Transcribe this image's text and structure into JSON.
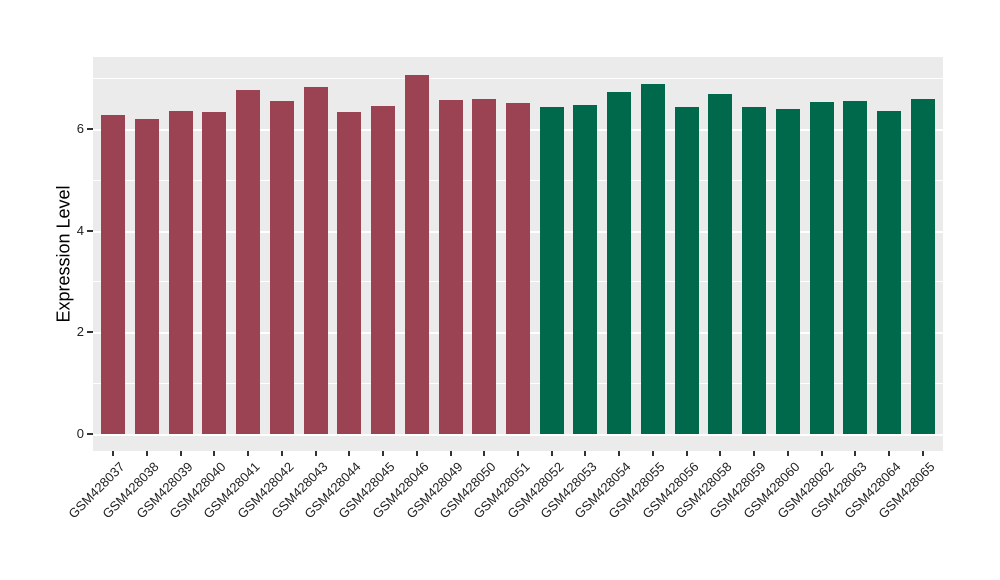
{
  "figure": {
    "background": "#FFFFFF",
    "panel_background": "#EBEBEB",
    "grid_color": "#FFFFFF",
    "axis_text_color": "#1F1F1F",
    "axis_title_color": "#000000",
    "tick_mark_color": "#333333"
  },
  "chart_data": {
    "type": "bar",
    "title": "",
    "xlabel": "",
    "ylabel": "Expression Level",
    "legend_position": "none",
    "grid": true,
    "categories": [
      "GSM428037",
      "GSM428038",
      "GSM428039",
      "GSM428040",
      "GSM428041",
      "GSM428042",
      "GSM428043",
      "GSM428044",
      "GSM428045",
      "GSM428046",
      "GSM428049",
      "GSM428050",
      "GSM428051",
      "GSM428052",
      "GSM428053",
      "GSM428054",
      "GSM428055",
      "GSM428056",
      "GSM428058",
      "GSM428059",
      "GSM428060",
      "GSM428062",
      "GSM428063",
      "GSM428064",
      "GSM428065"
    ],
    "values": [
      6.27,
      6.19,
      6.35,
      6.34,
      6.76,
      6.56,
      6.82,
      6.34,
      6.46,
      7.07,
      6.58,
      6.59,
      6.51,
      6.44,
      6.48,
      6.72,
      6.88,
      6.44,
      6.69,
      6.44,
      6.4,
      6.53,
      6.56,
      6.36,
      6.6
    ],
    "palette": [
      "#9C4353",
      "#00694B"
    ],
    "color_index": [
      0,
      0,
      0,
      0,
      0,
      0,
      0,
      0,
      0,
      0,
      0,
      0,
      0,
      1,
      1,
      1,
      1,
      1,
      1,
      1,
      1,
      1,
      1,
      1,
      1
    ],
    "yticks": [
      0,
      2,
      4,
      6
    ],
    "minor_gridlines": [
      1,
      3,
      5,
      7
    ],
    "ylim": [
      -0.36,
      7.42
    ],
    "x_label_rotation_deg": 45
  }
}
